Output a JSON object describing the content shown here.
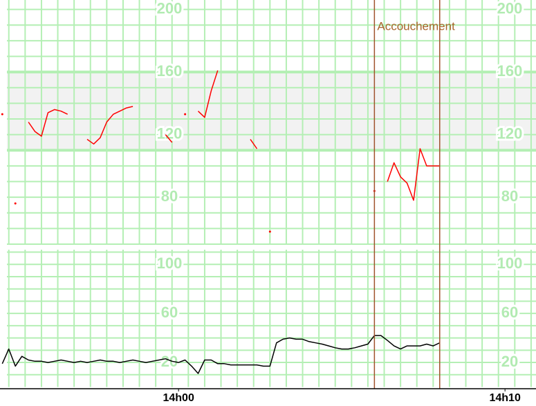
{
  "chart_data": {
    "type": "line",
    "annotation": "Accouchement",
    "events": [
      6.0,
      8.0
    ],
    "x": [
      -5.4,
      -5.2,
      -5.0,
      -4.8,
      -4.6,
      -4.4,
      -4.2,
      -4.0,
      -3.8,
      -3.6,
      -3.4,
      -3.2,
      -3.0,
      -2.8,
      -2.6,
      -2.4,
      -2.2,
      -2.0,
      -1.8,
      -1.6,
      -1.4,
      -1.2,
      -1.0,
      -0.8,
      -0.6,
      -0.4,
      -0.2,
      0,
      0.2,
      0.4,
      0.6,
      0.8,
      1.0,
      1.2,
      1.4,
      1.6,
      1.8,
      2.0,
      2.2,
      2.4,
      2.6,
      2.8,
      3.0,
      3.2,
      3.4,
      3.6,
      3.8,
      4.0,
      4.2,
      4.4,
      4.6,
      4.8,
      5.0,
      5.2,
      5.4,
      5.6,
      5.8,
      6.0,
      6.2,
      6.4,
      6.6,
      6.8,
      7.0,
      7.2,
      7.4,
      7.6,
      7.8,
      8.0,
      8.2
    ],
    "xlim": [
      -5.47,
      10.95
    ],
    "xticks": [
      {
        "value": 0,
        "label": "14h00"
      },
      {
        "value": 10,
        "label": "14h10"
      }
    ],
    "xgrid": [
      -5.2,
      -4.7,
      -4.2,
      -3.7,
      -3.2,
      -2.7,
      -2.2,
      -1.7,
      -1.2,
      -0.7,
      -0.2,
      0.3,
      0.8,
      1.3,
      1.8,
      2.3,
      2.8,
      3.3,
      3.8,
      4.3,
      4.8,
      5.3,
      5.8,
      6.3,
      6.8,
      7.3,
      7.8,
      8.3,
      8.8,
      9.3,
      9.8,
      10.3,
      10.8
    ],
    "ylim": [
      50,
      206
    ],
    "yticks": [
      80,
      120,
      160,
      200
    ],
    "ygrid": [
      60,
      70,
      80,
      90,
      100,
      110,
      120,
      130,
      140,
      150,
      160,
      170,
      180,
      190,
      200
    ],
    "band": [
      110,
      160
    ],
    "y2lim": [
      0,
      112
    ],
    "y2ticks": [
      20,
      60,
      100
    ],
    "y2grid": [
      10,
      20,
      30,
      40,
      50,
      60,
      70,
      80,
      90,
      100,
      110
    ],
    "grid": true,
    "series": [
      {
        "color": "#ff0000",
        "values": [
          133,
          null,
          76,
          null,
          128,
          122,
          119,
          134,
          136,
          135,
          133,
          null,
          null,
          117,
          114,
          118,
          128,
          133,
          135,
          137,
          138,
          null,
          null,
          null,
          null,
          120,
          115,
          null,
          133,
          null,
          135,
          131,
          148,
          161,
          null,
          null,
          null,
          null,
          117,
          111,
          null,
          58,
          null,
          null,
          null,
          null,
          null,
          null,
          null,
          null,
          null,
          null,
          null,
          null,
          null,
          null,
          null,
          84,
          null,
          90,
          102,
          93,
          89,
          78,
          111,
          100,
          100,
          100,
          null
        ]
      },
      {
        "color": "#000000",
        "axis": "y2",
        "values": [
          19,
          31,
          17,
          25,
          22,
          21,
          21,
          20,
          21,
          22,
          21,
          20,
          21,
          20,
          21,
          22,
          21,
          21,
          20,
          21,
          22,
          21,
          20,
          21,
          22,
          23,
          21,
          20,
          22,
          17,
          11,
          22,
          22,
          19,
          19,
          18,
          18,
          18,
          18,
          18,
          17,
          17,
          36,
          39,
          40,
          39,
          39,
          37,
          36,
          35,
          33.5,
          32,
          31,
          31,
          32,
          33.5,
          35,
          42,
          42,
          38,
          33.5,
          31,
          33.5,
          33.5,
          33.5,
          35,
          33.5,
          36,
          null
        ]
      }
    ]
  }
}
